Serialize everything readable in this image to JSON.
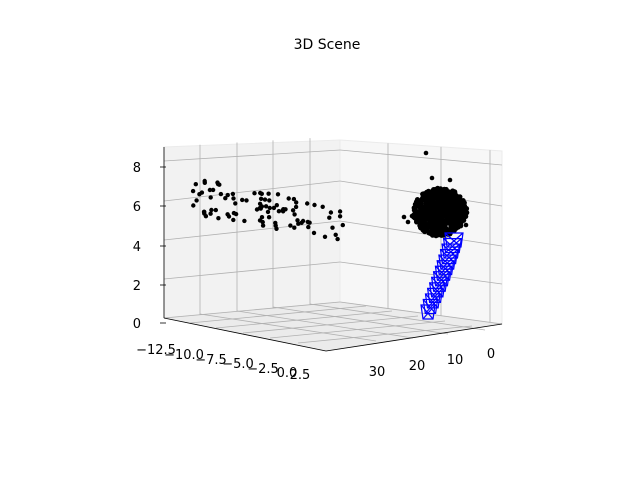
{
  "chart_data": {
    "type": "scatter",
    "projection": "3d",
    "title": "3D Scene",
    "xlabel": "",
    "ylabel": "",
    "zlabel": "",
    "grid": true,
    "axes": {
      "y_left": {
        "ticks": [
          "−12.5",
          "−10.0",
          "−7.5",
          "−5.0",
          "−2.5",
          "0.0",
          "2.5"
        ]
      },
      "x_right": {
        "ticks": [
          "30",
          "20",
          "10",
          "0"
        ]
      },
      "z": {
        "ticks": [
          "0",
          "2",
          "4",
          "6",
          "8"
        ]
      }
    },
    "series": [
      {
        "kind": "points",
        "color": "#000000",
        "description_values": {
          "left_cluster": {
            "y_range": [
              -12.5,
              0
            ],
            "z_range": [
              5,
              6.5
            ]
          },
          "dense_cluster": {
            "x_range": [
              13,
              23
            ],
            "z_range": [
              4.6,
              7
            ]
          }
        }
      },
      {
        "kind": "camera-frustums",
        "color": "#0000ff",
        "values": {
          "x_range": [
            10,
            18
          ],
          "z_range": [
            0.2,
            4.6
          ]
        }
      }
    ]
  }
}
